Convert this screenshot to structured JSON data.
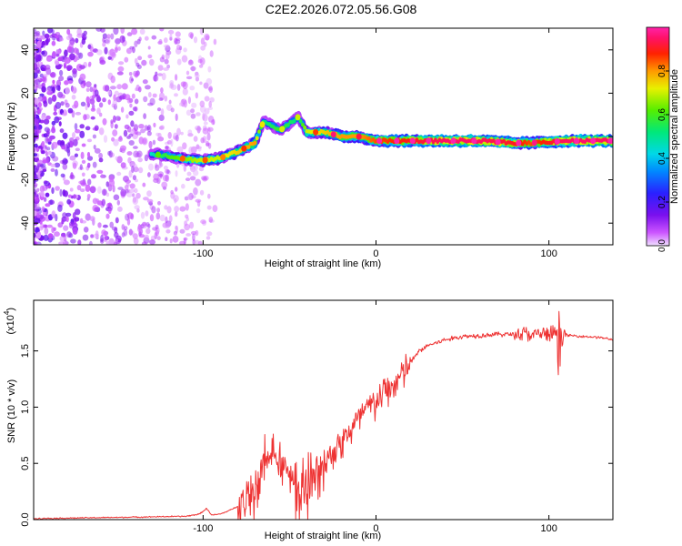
{
  "figure": {
    "title": "C2E2.2026.072.05.56.G08"
  },
  "chart_data": [
    {
      "type": "heatmap",
      "id": "spectrogram",
      "title": "C2E2.2026.072.05.56.G08",
      "xlabel": "Height of straight line (km)",
      "ylabel": "Frequency (Hz)",
      "xlim": [
        -198,
        137
      ],
      "ylim": [
        -50,
        50
      ],
      "xticks": [
        -100,
        0,
        100
      ],
      "yticks": [
        -40,
        -20,
        0,
        20,
        40
      ],
      "colorbar": {
        "label": "Normalized spectral amplitude",
        "range": [
          0,
          1
        ],
        "ticks": [
          0.0,
          0.2,
          0.4,
          0.6,
          0.8
        ],
        "colormap": "rainbow (magenta-blue-cyan-green-yellow-red-pink)"
      },
      "ridge": [
        {
          "x": -130,
          "y": -8,
          "amp": 0.45
        },
        {
          "x": -120,
          "y": -9,
          "amp": 0.6
        },
        {
          "x": -110,
          "y": -10.5,
          "amp": 0.65
        },
        {
          "x": -100,
          "y": -11,
          "amp": 0.7
        },
        {
          "x": -90,
          "y": -10,
          "amp": 0.7
        },
        {
          "x": -80,
          "y": -7,
          "amp": 0.75
        },
        {
          "x": -70,
          "y": -3,
          "amp": 0.8
        },
        {
          "x": -65,
          "y": 7,
          "amp": 0.5
        },
        {
          "x": -55,
          "y": 3,
          "amp": 0.6
        },
        {
          "x": -45,
          "y": 9,
          "amp": 0.5
        },
        {
          "x": -40,
          "y": 2,
          "amp": 0.7
        },
        {
          "x": -30,
          "y": 2,
          "amp": 0.75
        },
        {
          "x": -20,
          "y": 0,
          "amp": 0.8
        },
        {
          "x": -10,
          "y": 0,
          "amp": 0.8
        },
        {
          "x": 0,
          "y": -2,
          "amp": 0.85
        },
        {
          "x": 20,
          "y": -2,
          "amp": 0.9
        },
        {
          "x": 40,
          "y": -2,
          "amp": 0.95
        },
        {
          "x": 60,
          "y": -2,
          "amp": 0.95
        },
        {
          "x": 80,
          "y": -3,
          "amp": 0.9
        },
        {
          "x": 90,
          "y": -3,
          "amp": 0.85
        },
        {
          "x": 110,
          "y": -2,
          "amp": 0.95
        },
        {
          "x": 135,
          "y": -2,
          "amp": 0.95
        }
      ]
    },
    {
      "type": "line",
      "id": "snr",
      "xlabel": "Height of straight line (km)",
      "ylabel": "SNR (10 * v/v)",
      "yscale_label": "(x10",
      "yscale_exp": "4",
      "xlim": [
        -198,
        137
      ],
      "ylim": [
        0,
        1.95
      ],
      "xticks": [
        -100,
        0,
        100
      ],
      "yticks": [
        0.0,
        0.5,
        1.0,
        1.5
      ],
      "ytick_labels": [
        "0.0",
        "0.5",
        "1.0",
        "1.5"
      ],
      "series": [
        {
          "name": "SNR",
          "color": "#ee3333",
          "x": [
            -198,
            -150,
            -110,
            -102,
            -98,
            -95,
            -90,
            -85,
            -80,
            -75,
            -70,
            -65,
            -60,
            -55,
            -50,
            -45,
            -40,
            -36,
            -30,
            -25,
            -20,
            -15,
            -10,
            -5,
            0,
            5,
            10,
            15,
            20,
            25,
            30,
            40,
            50,
            60,
            70,
            80,
            85,
            90,
            95,
            100,
            105,
            110,
            120,
            130,
            137
          ],
          "y": [
            0.01,
            0.02,
            0.03,
            0.05,
            0.1,
            0.04,
            0.05,
            0.08,
            0.12,
            0.2,
            0.3,
            0.45,
            0.6,
            0.55,
            0.45,
            0.3,
            0.25,
            0.35,
            0.5,
            0.62,
            0.7,
            0.8,
            0.9,
            1.0,
            1.05,
            1.15,
            1.2,
            1.3,
            1.4,
            1.5,
            1.55,
            1.6,
            1.63,
            1.64,
            1.65,
            1.65,
            1.66,
            1.65,
            1.66,
            1.65,
            1.66,
            1.64,
            1.63,
            1.62,
            1.6
          ]
        }
      ]
    }
  ]
}
